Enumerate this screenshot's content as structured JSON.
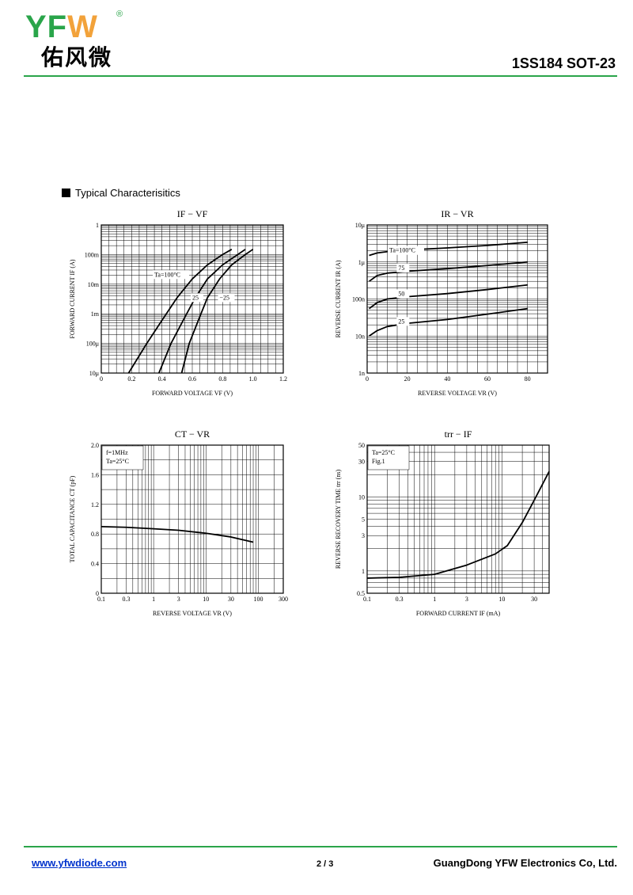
{
  "header": {
    "brand_prefix": "YF",
    "brand_u": "W",
    "registered": "®",
    "brand_cn": "佑风微",
    "part": "1SS184  SOT-23"
  },
  "section_title": "Typical  Characterisitics",
  "footer": {
    "url": "www.yfwdiode.com",
    "page": "2 / 3",
    "company": "GuangDong YFW Electronics Co, Ltd."
  },
  "colors": {
    "accent_green": "#2aa54a",
    "logo_orange": "#f2a23a",
    "link_blue": "#0033cc"
  },
  "chart_data": [
    {
      "type": "line",
      "title": "IF − VF",
      "xlabel": "FORWARD VOLTAGE  VF  (V)",
      "ylabel": "FORWARD CURRENT  IF  (A)",
      "xscale": "linear",
      "yscale": "log",
      "xlim": [
        0,
        1.2
      ],
      "ylim": [
        1e-05,
        1
      ],
      "xticks": [
        "0",
        "0.2",
        "0.4",
        "0.6",
        "0.8",
        "1.0",
        "1.2"
      ],
      "yticks": [
        "1",
        "100m",
        "10m",
        "1m",
        "100μ",
        "10μ"
      ],
      "series": [
        {
          "name": "Ta=100°C",
          "x": [
            0.18,
            0.3,
            0.4,
            0.5,
            0.6,
            0.7,
            0.8,
            0.86
          ],
          "y": [
            1e-05,
            0.0001,
            0.0006,
            0.0035,
            0.015,
            0.045,
            0.1,
            0.15
          ]
        },
        {
          "name": "25",
          "x": [
            0.38,
            0.46,
            0.54,
            0.62,
            0.7,
            0.8,
            0.9,
            0.95
          ],
          "y": [
            1e-05,
            0.0001,
            0.0006,
            0.0035,
            0.015,
            0.045,
            0.1,
            0.15
          ]
        },
        {
          "name": "−25",
          "x": [
            0.53,
            0.58,
            0.64,
            0.7,
            0.78,
            0.86,
            0.95,
            1.0
          ],
          "y": [
            1e-05,
            0.0001,
            0.0006,
            0.0035,
            0.015,
            0.045,
            0.1,
            0.15
          ]
        }
      ],
      "grid": true
    },
    {
      "type": "line",
      "title": "IR − VR",
      "xlabel": "REVERSE VOLTAGE  VR  (V)",
      "ylabel": "REVERSE CURRENT  IR  (A)",
      "xscale": "linear",
      "yscale": "log",
      "xlim": [
        0,
        90
      ],
      "ylim": [
        1e-09,
        1e-05
      ],
      "xticks": [
        "0",
        "20",
        "40",
        "60",
        "80"
      ],
      "yticks": [
        "10μ",
        "1μ",
        "100n",
        "10n",
        "1n"
      ],
      "series": [
        {
          "name": "Ta=100°C",
          "x": [
            1,
            5,
            10,
            20,
            40,
            60,
            80
          ],
          "y": [
            1.5e-06,
            1.75e-06,
            1.9e-06,
            2.1e-06,
            2.4e-06,
            2.8e-06,
            3.4e-06
          ]
        },
        {
          "name": "75",
          "x": [
            1,
            5,
            10,
            20,
            40,
            60,
            80
          ],
          "y": [
            3e-07,
            4.3e-07,
            5e-07,
            5.6e-07,
            6.6e-07,
            8e-07,
            1e-06
          ]
        },
        {
          "name": "50",
          "x": [
            1,
            5,
            10,
            20,
            40,
            60,
            80
          ],
          "y": [
            5.5e-08,
            8e-08,
            1e-07,
            1.15e-07,
            1.4e-07,
            1.8e-07,
            2.4e-07
          ]
        },
        {
          "name": "25",
          "x": [
            1,
            5,
            10,
            20,
            40,
            60,
            80
          ],
          "y": [
            1e-08,
            1.4e-08,
            1.8e-08,
            2.2e-08,
            2.8e-08,
            3.9e-08,
            5.5e-08
          ]
        }
      ],
      "grid": true
    },
    {
      "type": "line",
      "title": "CT − VR",
      "xlabel": "REVERSE VOLTAGE  VR  (V)",
      "ylabel": "TOTAL CAPACITANCE  CT  (pF)",
      "xscale": "log",
      "yscale": "linear",
      "xlim": [
        0.1,
        300
      ],
      "ylim": [
        0,
        2.0
      ],
      "xticks": [
        "0.1",
        "0.3",
        "1",
        "3",
        "10",
        "30",
        "100",
        "300"
      ],
      "yticks": [
        "2.0",
        "1.6",
        "1.2",
        "0.8",
        "0.4",
        "0"
      ],
      "annotation": [
        "f=1MHz",
        "Ta=25°C"
      ],
      "series": [
        {
          "name": "",
          "x": [
            0.1,
            0.3,
            1,
            3,
            10,
            30,
            80
          ],
          "y": [
            0.9,
            0.89,
            0.87,
            0.85,
            0.81,
            0.76,
            0.69
          ]
        }
      ],
      "grid": true
    },
    {
      "type": "line",
      "title": "trr − IF",
      "xlabel": "FORWARD CURRENT  IF  (mA)",
      "ylabel": "REVERSE RECOVERY TIME  trr  (ns)",
      "xscale": "log",
      "yscale": "log",
      "xlim": [
        0.1,
        50
      ],
      "ylim": [
        0.5,
        50
      ],
      "xticks": [
        "0.1",
        "0.3",
        "1",
        "3",
        "10",
        "30"
      ],
      "yticks": [
        "50",
        "30",
        "10",
        "5",
        "3",
        "1",
        "0.5"
      ],
      "annotation": [
        "Ta=25°C",
        "Fig.1"
      ],
      "series": [
        {
          "name": "",
          "x": [
            0.1,
            0.3,
            1,
            3,
            8,
            12,
            20,
            30,
            50
          ],
          "y": [
            0.8,
            0.82,
            0.9,
            1.2,
            1.7,
            2.2,
            4.5,
            9,
            22
          ]
        }
      ],
      "grid": true
    }
  ]
}
